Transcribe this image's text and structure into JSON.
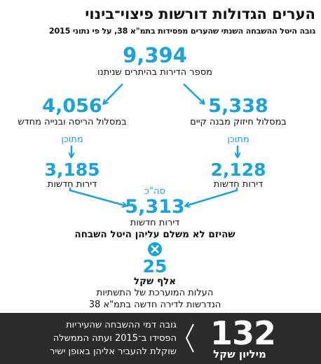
{
  "title": "הערים הגדולות דורשות פיצוי־בינוי",
  "subtitle": "גובה היטל ההשבחה השנתי שהערים מפסידות בתמ\"א 38, על פי נתוני 2015",
  "total": {
    "value": "9,394",
    "label": "מספר הדירות בהיתרים שניתנו"
  },
  "left_branch": {
    "value": "4,056",
    "label": "במסלול הריסה ובנייה מחדש",
    "sub_label": "מתוכן",
    "sub_value": "3,185",
    "sub_value_label": "דירות חדשות"
  },
  "right_branch": {
    "value": "5,338",
    "label": "במסלול חיזוק מבנה קיים",
    "sub_label": "מתוכן",
    "sub_value": "2,128",
    "sub_value_label": "דירות חדשות"
  },
  "sum": {
    "prefix": "סה\"כ",
    "value": "5,313",
    "label": "דירות חדשות",
    "note": "שהיזם לא משלם עליהן היטל השבחה"
  },
  "multiplier": {
    "value": "25",
    "unit": "אלף שקל",
    "line1": "העלות המוערכת של התשתיות",
    "line2": "הנדרשות לדירה חדשה בתמ\"א 38"
  },
  "result": {
    "value": "132",
    "unit": "מיליון שקל",
    "line1": "גובה דמי ההשבחה שהעיריות",
    "line2": "הפסידו ב־2015 ועתה הממשלה",
    "line3": "שוקלת להעביר אליהן באופן ישיר"
  },
  "colors": {
    "accent": "#18a3dc",
    "footer_bg": "#2b2b2b"
  }
}
